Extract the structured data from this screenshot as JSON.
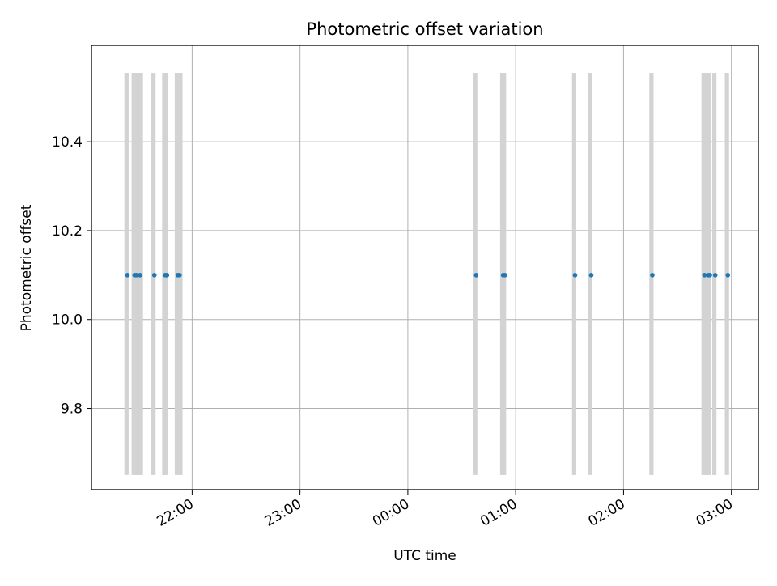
{
  "chart_data": {
    "type": "scatter",
    "title": "Photometric offset variation",
    "xlabel": "UTC time",
    "ylabel": "Photometric offset",
    "x_is_time": true,
    "xlim": [
      "21:04",
      "03:15"
    ],
    "ylim": [
      9.617,
      10.617
    ],
    "x_ticks": [
      "22:00",
      "23:00",
      "00:00",
      "01:00",
      "02:00",
      "03:00"
    ],
    "y_ticks": [
      9.8,
      10.0,
      10.2,
      10.4
    ],
    "y_tick_labels": [
      "9.8",
      "10.0",
      "10.2",
      "10.4"
    ],
    "grid": true,
    "band_range": [
      9.65,
      10.555
    ],
    "band_color": "#d3d3d3",
    "point_color": "#1f77b4",
    "exposures": [
      {
        "start": "21:23",
        "end": "21:24"
      },
      {
        "start": "21:27",
        "end": "21:28"
      },
      {
        "start": "21:28",
        "end": "21:29"
      },
      {
        "start": "21:29",
        "end": "21:30"
      },
      {
        "start": "21:30",
        "end": "21:31"
      },
      {
        "start": "21:31",
        "end": "21:32"
      },
      {
        "start": "21:38",
        "end": "21:39"
      },
      {
        "start": "21:44",
        "end": "21:45"
      },
      {
        "start": "21:45",
        "end": "21:46"
      },
      {
        "start": "21:51",
        "end": "21:52"
      },
      {
        "start": "21:53",
        "end": "21:54"
      },
      {
        "start": "00:37",
        "end": "00:38"
      },
      {
        "start": "00:52",
        "end": "00:53"
      },
      {
        "start": "00:53",
        "end": "00:54"
      },
      {
        "start": "01:32",
        "end": "01:33"
      },
      {
        "start": "01:41",
        "end": "01:42"
      },
      {
        "start": "02:15",
        "end": "02:16"
      },
      {
        "start": "02:44",
        "end": "02:45"
      },
      {
        "start": "02:46",
        "end": "02:47"
      },
      {
        "start": "02:47",
        "end": "02:48"
      },
      {
        "start": "02:50",
        "end": "02:51"
      },
      {
        "start": "02:57",
        "end": "02:58"
      }
    ],
    "points": [
      {
        "x": "21:24",
        "y": 10.1
      },
      {
        "x": "21:28",
        "y": 10.1
      },
      {
        "x": "21:29",
        "y": 10.1
      },
      {
        "x": "21:31",
        "y": 10.1
      },
      {
        "x": "21:39",
        "y": 10.1
      },
      {
        "x": "21:45",
        "y": 10.1
      },
      {
        "x": "21:46",
        "y": 10.1
      },
      {
        "x": "21:52",
        "y": 10.1
      },
      {
        "x": "21:53",
        "y": 10.1
      },
      {
        "x": "00:38",
        "y": 10.1
      },
      {
        "x": "00:53",
        "y": 10.1
      },
      {
        "x": "00:54",
        "y": 10.1
      },
      {
        "x": "01:33",
        "y": 10.1
      },
      {
        "x": "01:42",
        "y": 10.1
      },
      {
        "x": "02:16",
        "y": 10.1
      },
      {
        "x": "02:45",
        "y": 10.1
      },
      {
        "x": "02:47",
        "y": 10.1
      },
      {
        "x": "02:48",
        "y": 10.1
      },
      {
        "x": "02:51",
        "y": 10.1
      },
      {
        "x": "02:58",
        "y": 10.1
      }
    ]
  }
}
